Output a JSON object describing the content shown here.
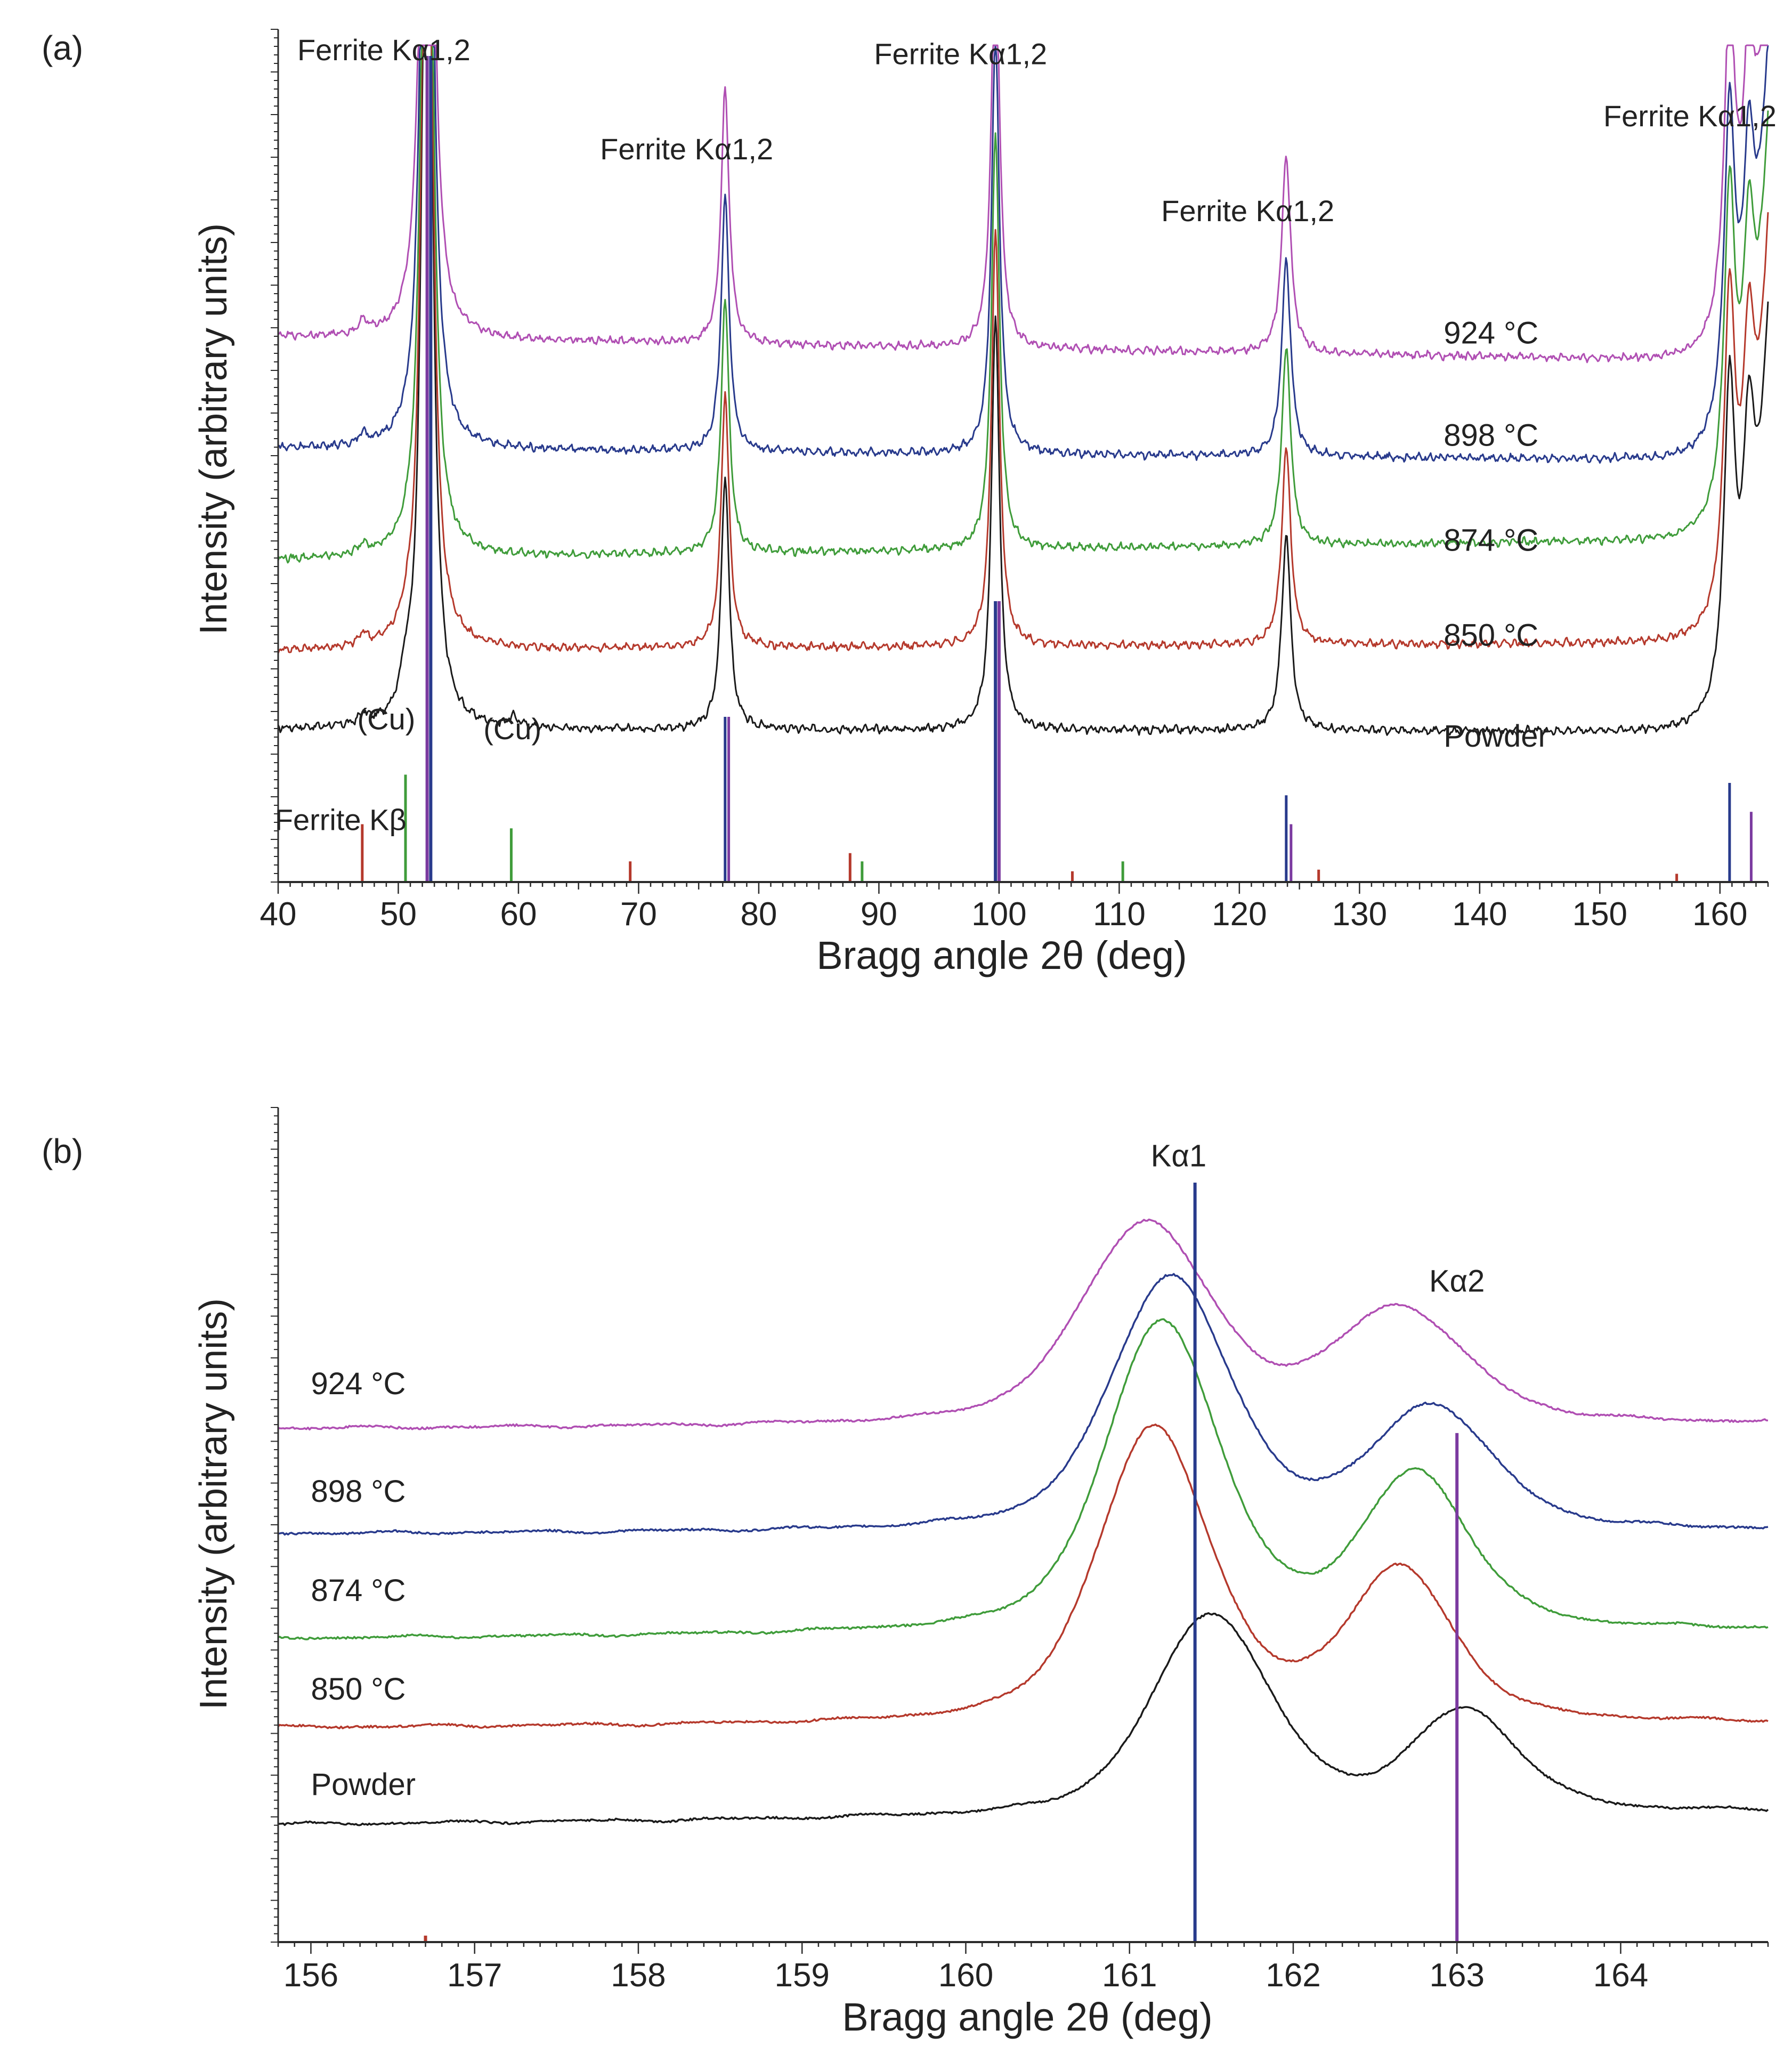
{
  "colors": {
    "axis": "#2b2b2b",
    "black": "#1a1a1a",
    "red": "#b5392c",
    "green": "#3f9c3a",
    "blue": "#283a8c",
    "magenta": "#b04fb3",
    "purple": "#7b3aa0",
    "teal": "#2a8f8f",
    "orange": "#c8761c"
  },
  "chart_data": [
    {
      "type": "line",
      "panel_label": "(a)",
      "xlabel": "Bragg angle 2θ  (deg)",
      "ylabel": "Intensity (arbitrary units)",
      "xlim": [
        40,
        164
      ],
      "ylim": [
        0,
        100
      ],
      "x_ticks": [
        "40",
        "50",
        "60",
        "70",
        "80",
        "90",
        "100",
        "110",
        "120",
        "130",
        "140",
        "150",
        "160"
      ],
      "peaks": [
        {
          "pos": 52.4,
          "width": 0.45,
          "rel": 1.0
        },
        {
          "pos": 77.2,
          "width": 0.4,
          "rel": 0.22
        },
        {
          "pos": 99.7,
          "width": 0.4,
          "rel": 0.36
        },
        {
          "pos": 123.9,
          "width": 0.45,
          "rel": 0.17
        },
        {
          "pos": 160.8,
          "width": 0.55,
          "rel": 0.27
        },
        {
          "pos": 162.4,
          "width": 0.55,
          "rel": 0.17
        }
      ],
      "series": [
        {
          "name": "Powder",
          "label": "Powder",
          "color_key": "black",
          "baseline": [
            18.5,
            18.2
          ],
          "noise": 0.5,
          "extra_peaks": [
            {
              "pos": 47.1,
              "width": 0.4,
              "height": 1.2
            },
            {
              "pos": 50.6,
              "width": 0.5,
              "height": 3.5
            },
            {
              "pos": 59.6,
              "width": 0.5,
              "height": 1.1
            }
          ]
        },
        {
          "name": "850 °C",
          "label": "850 °C",
          "color_key": "red",
          "baseline": [
            28.0,
            29.0
          ],
          "noise": 0.5,
          "extra_peaks": [
            {
              "pos": 47.1,
              "width": 0.4,
              "height": 1.4
            },
            {
              "pos": 50.6,
              "width": 0.4,
              "height": 1.0
            }
          ]
        },
        {
          "name": "874 °C",
          "label": "874 °C",
          "color_key": "green",
          "baseline": [
            39.0,
            41.5
          ],
          "noise": 0.5,
          "extra_peaks": [
            {
              "pos": 47.1,
              "width": 0.4,
              "height": 1.3
            }
          ]
        },
        {
          "name": "898 °C",
          "label": "898 °C",
          "color_key": "blue",
          "baseline": [
            52.5,
            51.0
          ],
          "noise": 0.5,
          "extra_peaks": [
            {
              "pos": 47.1,
              "width": 0.4,
              "height": 1.3
            }
          ]
        },
        {
          "name": "924 °C",
          "label": "924 °C",
          "color_key": "magenta",
          "baseline": [
            66.0,
            63.0
          ],
          "noise": 0.5,
          "extra_peaks": [
            {
              "pos": 47.1,
              "width": 0.4,
              "height": 1.6
            }
          ]
        }
      ],
      "reference_lines": [
        {
          "x": 47.0,
          "height": 7.0,
          "color_key": "red"
        },
        {
          "x": 50.6,
          "height": 13.0,
          "color_key": "green"
        },
        {
          "x": 52.4,
          "height": 100,
          "color_key": "purple"
        },
        {
          "x": 52.7,
          "height": 100,
          "color_key": "blue"
        },
        {
          "x": 59.4,
          "height": 6.5,
          "color_key": "green"
        },
        {
          "x": 69.3,
          "height": 2.5,
          "color_key": "red"
        },
        {
          "x": 77.2,
          "height": 20.0,
          "color_key": "blue"
        },
        {
          "x": 77.5,
          "height": 20.0,
          "color_key": "purple"
        },
        {
          "x": 87.6,
          "height": 3.5,
          "color_key": "red"
        },
        {
          "x": 88.6,
          "height": 2.5,
          "color_key": "green"
        },
        {
          "x": 99.7,
          "height": 34.0,
          "color_key": "blue"
        },
        {
          "x": 100.0,
          "height": 34.0,
          "color_key": "purple"
        },
        {
          "x": 106.1,
          "height": 1.3,
          "color_key": "red"
        },
        {
          "x": 110.3,
          "height": 2.5,
          "color_key": "green"
        },
        {
          "x": 123.9,
          "height": 10.5,
          "color_key": "blue"
        },
        {
          "x": 124.3,
          "height": 7.0,
          "color_key": "purple"
        },
        {
          "x": 126.6,
          "height": 1.5,
          "color_key": "red"
        },
        {
          "x": 156.4,
          "height": 1.0,
          "color_key": "red"
        },
        {
          "x": 160.8,
          "height": 12.0,
          "color_key": "blue"
        },
        {
          "x": 162.6,
          "height": 8.5,
          "color_key": "purple"
        }
      ],
      "annotations": [
        {
          "text": "Ferrite Kα1,2",
          "x": 48.8,
          "y": 99.5
        },
        {
          "text": "Ferrite Kα1,2",
          "x": 74.0,
          "y": 87.5
        },
        {
          "text": "Ferrite Kα1,2",
          "x": 96.8,
          "y": 99.0
        },
        {
          "text": "Ferrite Kα1,2",
          "x": 120.7,
          "y": 80.0
        },
        {
          "text": "Ferrite Kα1,2",
          "x": 157.5,
          "y": 91.5
        },
        {
          "text": "(Cu)",
          "x": 49.0,
          "y": 18.5
        },
        {
          "text": "(Cu)",
          "x": 59.5,
          "y": 17.3
        },
        {
          "text": "Ferrite Kβ",
          "x": 45.2,
          "y": 6.3
        }
      ],
      "series_label_x": 137.0,
      "series_label_y": [
        16.4,
        28.6,
        40.1,
        52.8,
        65.2
      ]
    },
    {
      "type": "line",
      "panel_label": "(b)",
      "xlabel": "Bragg angle 2θ (deg)",
      "ylabel": "Intensity (arbitrary units)",
      "xlim": [
        155.8,
        164.9
      ],
      "ylim": [
        0,
        100
      ],
      "x_ticks": [
        "156",
        "157",
        "158",
        "159",
        "160",
        "161",
        "162",
        "163",
        "164"
      ],
      "series": [
        {
          "name": "Powder",
          "label": "Powder",
          "color_key": "black",
          "baseline": [
            14.5,
            16.0
          ],
          "noise": 0.25,
          "peaks": [
            {
              "pos": 161.5,
              "width": 0.5,
              "height": 25.0
            },
            {
              "pos": 163.05,
              "width": 0.45,
              "height": 12.5
            }
          ]
        },
        {
          "name": "850 °C",
          "label": "850 °C",
          "color_key": "red",
          "baseline": [
            26.5,
            27.0
          ],
          "noise": 0.25,
          "peaks": [
            {
              "pos": 161.15,
              "width": 0.48,
              "height": 36.5
            },
            {
              "pos": 162.65,
              "width": 0.45,
              "height": 18.5
            }
          ]
        },
        {
          "name": "874 °C",
          "label": "874 °C",
          "color_key": "green",
          "baseline": [
            37.5,
            38.5
          ],
          "noise": 0.25,
          "peaks": [
            {
              "pos": 161.2,
              "width": 0.48,
              "height": 38.5
            },
            {
              "pos": 162.75,
              "width": 0.45,
              "height": 19.0
            }
          ]
        },
        {
          "name": "898 °C",
          "label": "898 °C",
          "color_key": "blue",
          "baseline": [
            50.5,
            50.8
          ],
          "noise": 0.25,
          "peaks": [
            {
              "pos": 161.25,
              "width": 0.5,
              "height": 31.5
            },
            {
              "pos": 162.85,
              "width": 0.5,
              "height": 15.0
            }
          ]
        },
        {
          "name": "924 °C",
          "label": "924 °C",
          "color_key": "magenta",
          "baseline": [
            63.5,
            64.0
          ],
          "noise": 0.25,
          "peaks": [
            {
              "pos": 161.1,
              "width": 0.55,
              "height": 25.0
            },
            {
              "pos": 162.65,
              "width": 0.55,
              "height": 14.0
            }
          ]
        }
      ],
      "reference_lines": [
        {
          "x": 161.4,
          "height": 94.0,
          "color_key": "blue"
        },
        {
          "x": 163.0,
          "height": 63.0,
          "color_key": "purple"
        },
        {
          "x": 156.7,
          "height": 0.8,
          "color_key": "red"
        }
      ],
      "annotations": [
        {
          "text": "Kα1",
          "x": 161.3,
          "y": 96.0
        },
        {
          "text": "Kα2",
          "x": 163.0,
          "y": 80.5
        }
      ],
      "series_label_x": 156.0,
      "series_label_y": [
        18.2,
        30.0,
        42.2,
        54.5,
        67.8
      ]
    }
  ]
}
